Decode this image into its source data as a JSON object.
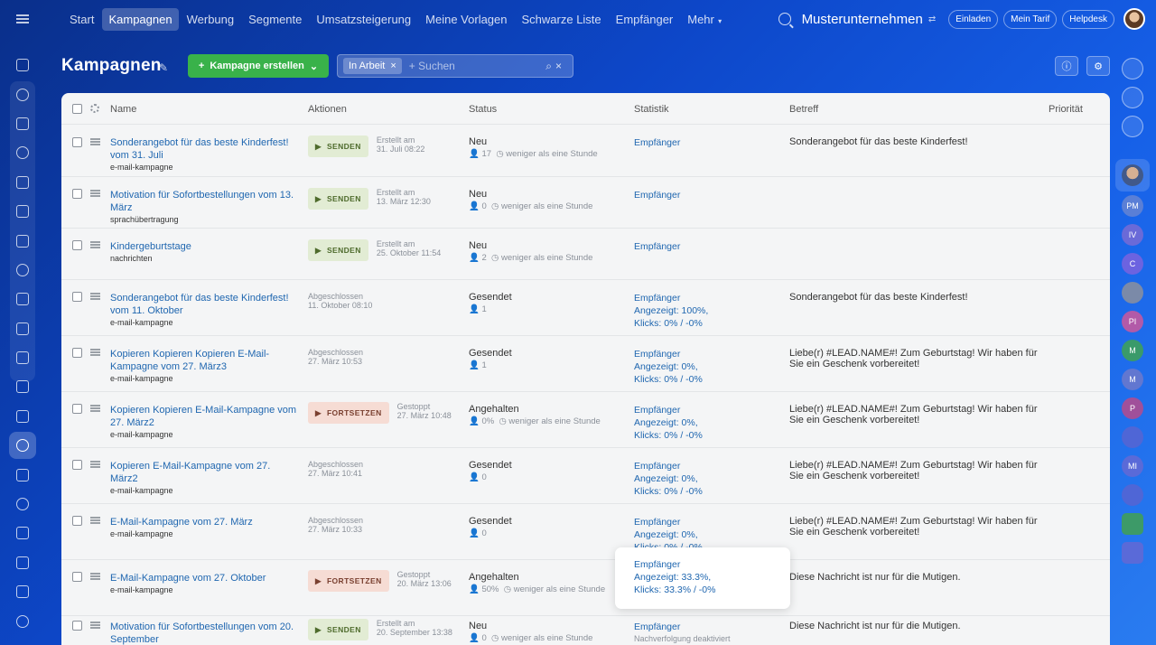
{
  "topnav": {
    "items": [
      "Start",
      "Kampagnen",
      "Werbung",
      "Segmente",
      "Umsatzsteigerung",
      "Meine Vorlagen",
      "Schwarze Liste",
      "Empfänger"
    ],
    "more": "Mehr",
    "active": "Kampagnen"
  },
  "topright": {
    "company": "Musterunternehmen",
    "invite": "Einladen",
    "plan": "Mein Tarif",
    "help": "Helpdesk"
  },
  "page": {
    "title": "Kampagnen",
    "create_label": "Kampagne erstellen",
    "filter_tag": "In Arbeit",
    "search_placeholder": "+ Suchen"
  },
  "columns": {
    "name": "Name",
    "actions": "Aktionen",
    "status": "Status",
    "stats": "Statistik",
    "subject": "Betreff",
    "priority": "Priorität"
  },
  "rows": [
    {
      "title": "Sonderangebot für das beste Kinderfest! vom 31. Juli",
      "type": "e-mail-kampagne",
      "action": "SENDEN",
      "action_meta1": "Erstellt am",
      "action_meta2": "31. Juli 08:22",
      "status": "Neu",
      "status_meta": "17",
      "status_time": "weniger als eine Stunde",
      "stats": [
        "Empfänger"
      ],
      "subject": "Sonderangebot für das beste Kinderfest!"
    },
    {
      "title": "Motivation für Sofortbestellungen vom 13. März",
      "type": "sprachübertragung",
      "action": "SENDEN",
      "action_meta1": "Erstellt am",
      "action_meta2": "13. März 12:30",
      "status": "Neu",
      "status_meta": "0",
      "status_time": "weniger als eine Stunde",
      "stats": [
        "Empfänger"
      ],
      "subject": ""
    },
    {
      "title": "Kindergeburtstage",
      "type": "nachrichten",
      "action": "SENDEN",
      "action_meta1": "Erstellt am",
      "action_meta2": "25. Oktober 11:54",
      "status": "Neu",
      "status_meta": "2",
      "status_time": "weniger als eine Stunde",
      "stats": [
        "Empfänger"
      ],
      "subject": ""
    },
    {
      "title": "Sonderangebot für das beste Kinderfest! vom 11. Oktober",
      "type": "e-mail-kampagne",
      "done1": "Abgeschlossen",
      "done2": "11. Oktober 08:10",
      "status": "Gesendet",
      "status_meta": "1",
      "stats": [
        "Empfänger",
        "Angezeigt: 100%,",
        "Klicks: 0% / -0%"
      ],
      "subject": "Sonderangebot für das beste Kinderfest!"
    },
    {
      "title": "Kopieren Kopieren Kopieren E-Mail-Kampagne vom 27. März3",
      "type": "e-mail-kampagne",
      "done1": "Abgeschlossen",
      "done2": "27. März 10:53",
      "status": "Gesendet",
      "status_meta": "1",
      "stats": [
        "Empfänger",
        "Angezeigt: 0%,",
        "Klicks: 0% / -0%"
      ],
      "subject": "Liebe(r) #LEAD.NAME#! Zum Geburtstag! Wir haben für Sie ein Geschenk vorbereitet!"
    },
    {
      "title": "Kopieren Kopieren E-Mail-Kampagne vom 27. März2",
      "type": "e-mail-kampagne",
      "action": "FORTSETZEN",
      "action_meta1": "Gestoppt",
      "action_meta2": "27. März 10:48",
      "status": "Angehalten",
      "status_meta": "0%",
      "status_time": "weniger als eine Stunde",
      "stats": [
        "Empfänger",
        "Angezeigt: 0%,",
        "Klicks: 0% / -0%"
      ],
      "subject": "Liebe(r) #LEAD.NAME#! Zum Geburtstag! Wir haben für Sie ein Geschenk vorbereitet!"
    },
    {
      "title": "Kopieren E-Mail-Kampagne vom 27. März2",
      "type": "e-mail-kampagne",
      "done1": "Abgeschlossen",
      "done2": "27. März 10:41",
      "status": "Gesendet",
      "status_meta": "0",
      "stats": [
        "Empfänger",
        "Angezeigt: 0%,",
        "Klicks: 0% / -0%"
      ],
      "subject": "Liebe(r) #LEAD.NAME#! Zum Geburtstag! Wir haben für Sie ein Geschenk vorbereitet!"
    },
    {
      "title": "E-Mail-Kampagne vom 27. März",
      "type": "e-mail-kampagne",
      "done1": "Abgeschlossen",
      "done2": "27. März 10:33",
      "status": "Gesendet",
      "status_meta": "0",
      "stats": [
        "Empfänger",
        "Angezeigt: 0%,",
        "Klicks: 0% / -0%"
      ],
      "subject": "Liebe(r) #LEAD.NAME#! Zum Geburtstag! Wir haben für Sie ein Geschenk vorbereitet!"
    },
    {
      "title": "E-Mail-Kampagne vom 27. Oktober",
      "type": "e-mail-kampagne",
      "action": "FORTSETZEN",
      "action_meta1": "Gestoppt",
      "action_meta2": "20. März 13:06",
      "status": "Angehalten",
      "status_meta": "50%",
      "status_time": "weniger als eine Stunde",
      "stats": [
        "Empfänger",
        "Angezeigt: 33.3%,",
        "Klicks: 33.3% / -0%"
      ],
      "subject": "Diese Nachricht ist nur für die Mutigen."
    },
    {
      "title": "Motivation für Sofortbestellungen vom 20. September",
      "type": "e-mail-kampagne",
      "action": "SENDEN",
      "action_meta1": "Erstellt am",
      "action_meta2": "20. September 13:38",
      "status": "Neu",
      "status_meta": "0",
      "status_time": "weniger als eine Stunde",
      "stats": [
        "Empfänger"
      ],
      "stats_sub": "Nachverfolgung deaktiviert",
      "subject": "Diese Nachricht ist nur für die Mutigen."
    }
  ],
  "right_sidebar_initials": [
    "PM",
    "IV",
    "C",
    "PI",
    "M",
    "M",
    "P",
    "MI"
  ]
}
